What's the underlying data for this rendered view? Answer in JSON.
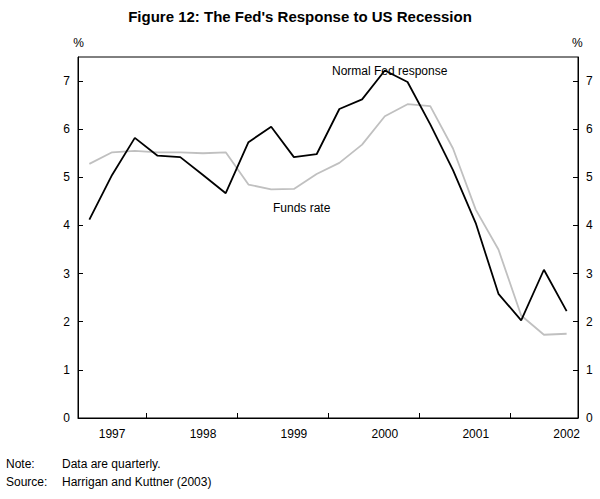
{
  "chart_data": {
    "type": "line",
    "title": "Figure 12: The Fed's Response to US Recession",
    "y_label": "%",
    "y2_label": "%",
    "categories": [
      null,
      "1997",
      null,
      null,
      null,
      "1998",
      null,
      null,
      null,
      "1999",
      null,
      null,
      null,
      "2000",
      null,
      null,
      null,
      "2001",
      null,
      null,
      null,
      "2002"
    ],
    "series": [
      {
        "name": "Normal Fed response",
        "color": "#000000",
        "line_style": "solid",
        "values": [
          4.12,
          5.05,
          5.82,
          5.45,
          5.42,
          5.05,
          4.67,
          5.73,
          6.05,
          5.42,
          5.48,
          6.42,
          6.62,
          7.22,
          6.98,
          6.1,
          5.15,
          4.05,
          2.58,
          2.03,
          3.08,
          2.22
        ]
      },
      {
        "name": "Funds rate",
        "color": "#c0c0c0",
        "line_style": "solid",
        "values": [
          5.28,
          5.52,
          5.55,
          5.52,
          5.52,
          5.5,
          5.52,
          4.85,
          4.75,
          4.76,
          5.07,
          5.3,
          5.68,
          6.27,
          6.52,
          6.48,
          5.6,
          4.33,
          3.5,
          2.13,
          1.73,
          1.75
        ]
      }
    ],
    "ylim": [
      0,
      7.5
    ],
    "yticks": [
      0,
      1,
      2,
      3,
      4,
      5,
      6,
      7
    ],
    "y2lim": [
      0,
      7.5
    ],
    "y2ticks": [
      0,
      1,
      2,
      3,
      4,
      5,
      6,
      7
    ],
    "grid": false,
    "notes": [
      {
        "label": "Note:",
        "text": "Data are quarterly."
      },
      {
        "label": "Source:",
        "text": "Harrigan and Kuttner (2003)"
      }
    ]
  }
}
